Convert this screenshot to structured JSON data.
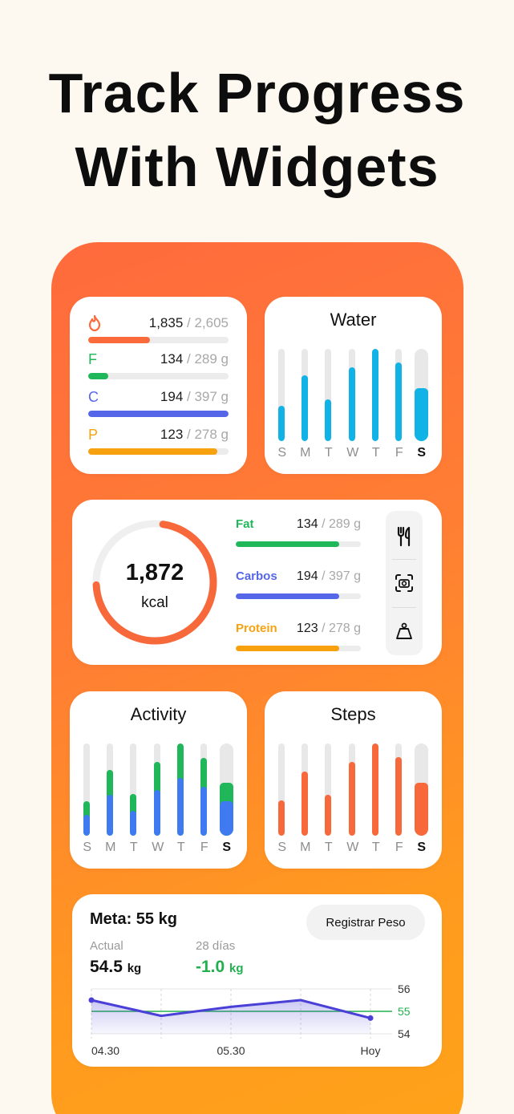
{
  "headline": {
    "line1": "Track Progress",
    "line2": "With Widgets"
  },
  "colors": {
    "calories": "#fb6a3b",
    "fat": "#1fb75a",
    "carbs": "#5567e8",
    "protein": "#f8a10f",
    "water": "#11b3e6",
    "activity_blue": "#3f7af1",
    "activity_green": "#1fb75a",
    "steps": "#f7683b",
    "weight_line": "#4a3fd6",
    "goal_line": "#22b04f"
  },
  "macros_widget": {
    "rows": [
      {
        "icon": "flame-icon",
        "letter": "",
        "value": "1,835",
        "total": " / 2,605",
        "fraction": 0.44
      },
      {
        "icon": "",
        "letter": "F",
        "value": "134",
        "total": " / 289 g",
        "fraction": 0.14
      },
      {
        "icon": "",
        "letter": "C",
        "value": "194",
        "total": " / 397 g",
        "fraction": 1.0
      },
      {
        "icon": "",
        "letter": "P",
        "value": "123",
        "total": " / 278 g",
        "fraction": 0.92
      }
    ]
  },
  "water_widget": {
    "title": "Water",
    "days": [
      "S",
      "M",
      "T",
      "W",
      "T",
      "F",
      "S"
    ],
    "levels": [
      0.38,
      0.71,
      0.45,
      0.8,
      1.0,
      0.85,
      0.57
    ]
  },
  "calories_widget": {
    "value": "1,872",
    "unit": "kcal",
    "ring_fraction": 0.72,
    "nutrients": [
      {
        "name": "Fat",
        "value": "134",
        "total": " / 289 g",
        "fraction": 0.83
      },
      {
        "name": "Carbos",
        "value": "194",
        "total": " / 397 g",
        "fraction": 0.83
      },
      {
        "name": "Protein",
        "value": "123",
        "total": " / 278 g",
        "fraction": 0.83
      }
    ],
    "side_icons": [
      "fork-knife-icon",
      "camera-scan-icon",
      "weight-scale-icon"
    ]
  },
  "activity_widget": {
    "title": "Activity",
    "days": [
      "S",
      "M",
      "T",
      "W",
      "T",
      "F",
      "S"
    ],
    "blue_levels": [
      0.23,
      0.44,
      0.27,
      0.5,
      0.63,
      0.53,
      0.37
    ],
    "green_levels": [
      0.14,
      0.27,
      0.18,
      0.3,
      0.37,
      0.31,
      0.2
    ]
  },
  "steps_widget": {
    "title": "Steps",
    "days": [
      "S",
      "M",
      "T",
      "W",
      "T",
      "F",
      "S"
    ],
    "levels": [
      0.38,
      0.7,
      0.44,
      0.8,
      1.0,
      0.85,
      0.57
    ]
  },
  "weight_widget": {
    "goal": "Meta: 55 kg",
    "register_button": "Registrar Peso",
    "current_label": "Actual",
    "current_value": "54.5",
    "current_unit": "kg",
    "change_label": "28 días",
    "change_value": "-1.0",
    "change_unit": "kg",
    "chart": {
      "y_ticks": [
        "56",
        "55",
        "54"
      ],
      "ylim": [
        54,
        56
      ],
      "goal": 55,
      "x_labels": [
        "04.30",
        "05.30",
        "Hoy"
      ],
      "points": [
        55.5,
        54.8,
        55.2,
        55.5,
        54.7
      ]
    }
  }
}
